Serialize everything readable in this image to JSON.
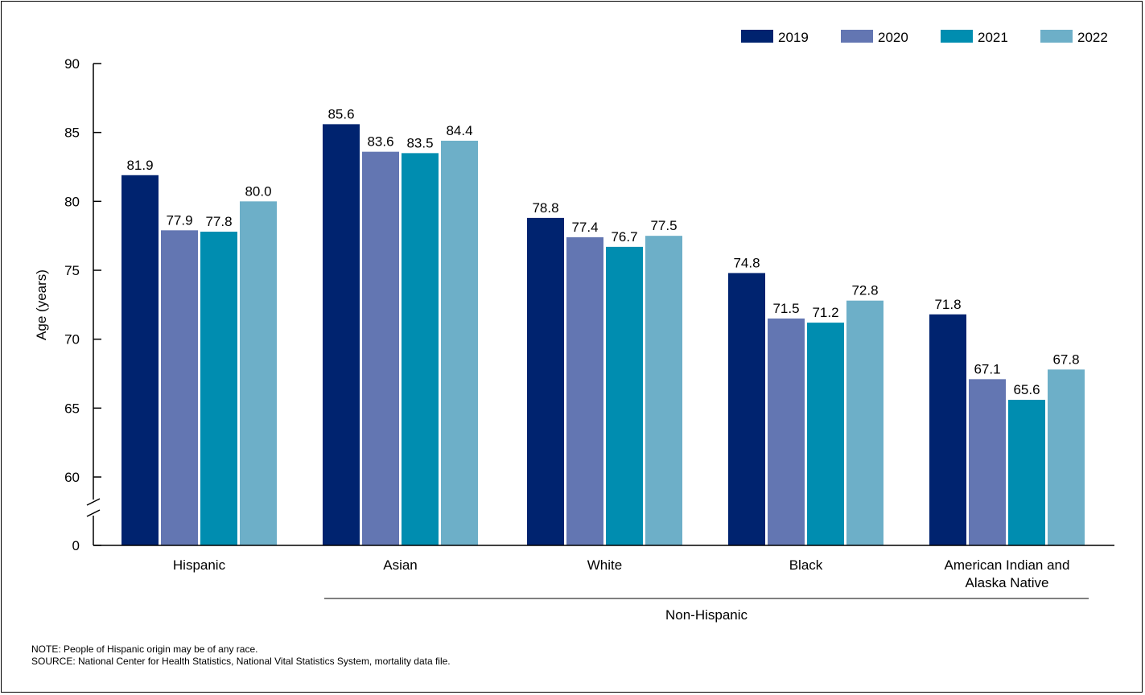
{
  "chart_data": {
    "type": "bar",
    "categories": [
      "Hispanic",
      "Asian",
      "White",
      "Black",
      "American Indian and Alaska Native"
    ],
    "category_lines": [
      [
        "Hispanic"
      ],
      [
        "Asian"
      ],
      [
        "White"
      ],
      [
        "Black"
      ],
      [
        "American Indian and",
        "Alaska Native"
      ]
    ],
    "series": [
      {
        "name": "2019",
        "color": "#00236f",
        "values": [
          81.9,
          85.6,
          78.8,
          74.8,
          71.8
        ]
      },
      {
        "name": "2020",
        "color": "#6376b2",
        "values": [
          77.9,
          83.6,
          77.4,
          71.5,
          67.1
        ]
      },
      {
        "name": "2021",
        "color": "#008db0",
        "values": [
          77.8,
          83.5,
          76.7,
          71.2,
          65.6
        ]
      },
      {
        "name": "2022",
        "color": "#6dafc8",
        "values": [
          80.0,
          84.4,
          77.5,
          72.8,
          67.8
        ]
      }
    ],
    "data_labels": [
      [
        "81.9",
        "85.6",
        "78.8",
        "74.8",
        "71.8"
      ],
      [
        "77.9",
        "83.6",
        "77.4",
        "71.5",
        "67.1"
      ],
      [
        "77.8",
        "83.5",
        "76.7",
        "71.2",
        "65.6"
      ],
      [
        "80.0",
        "84.4",
        "77.5",
        "72.8",
        "67.8"
      ]
    ],
    "ylabel": "Age (years)",
    "xlabel": "",
    "yticks": [
      "90",
      "85",
      "80",
      "75",
      "70",
      "65",
      "60",
      "0"
    ],
    "ylim": [
      60,
      90
    ],
    "y_axis_break": true,
    "group_label": "Non-Hispanic",
    "legend_position": "top-right"
  },
  "notes": {
    "note": "NOTE: People of Hispanic origin may be of any race.",
    "source": "SOURCE: National Center for Health Statistics, National Vital Statistics System, mortality data file."
  }
}
